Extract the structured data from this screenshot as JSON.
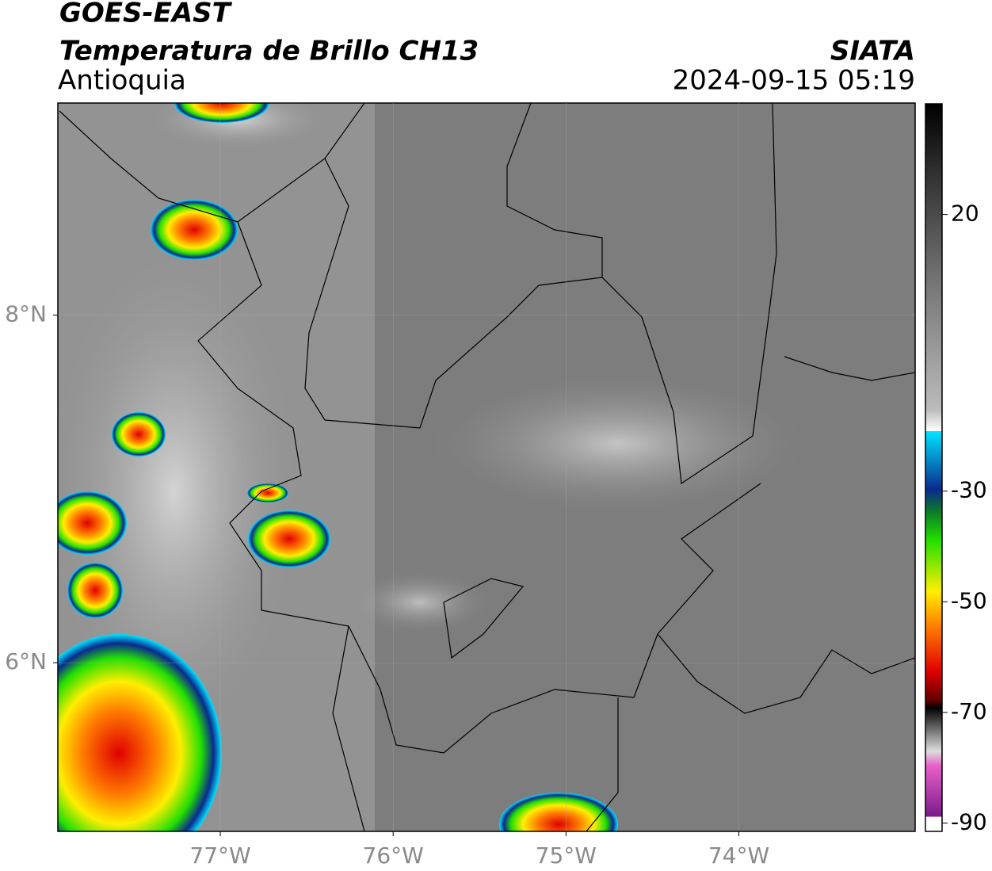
{
  "header": {
    "satellite": "GOES-EAST",
    "product": "Temperatura de Brillo CH13",
    "region": "Antioquia",
    "source": "SIATA",
    "datetime": "2024-09-15 05:19"
  },
  "map": {
    "xlim": [
      -77.94,
      -72.98
    ],
    "ylim": [
      5.03,
      9.22
    ],
    "xticks": [
      {
        "value": -77,
        "label": "77°W"
      },
      {
        "value": -76,
        "label": "76°W"
      },
      {
        "value": -75,
        "label": "75°W"
      },
      {
        "value": -74,
        "label": "74°W"
      }
    ],
    "yticks": [
      {
        "value": 8,
        "label": "8°N"
      },
      {
        "value": 6,
        "label": "6°N"
      }
    ],
    "grid": true
  },
  "colorbar": {
    "range": [
      -91.5,
      40
    ],
    "ticks": [
      20,
      -30,
      -50,
      -70,
      -90
    ]
  }
}
